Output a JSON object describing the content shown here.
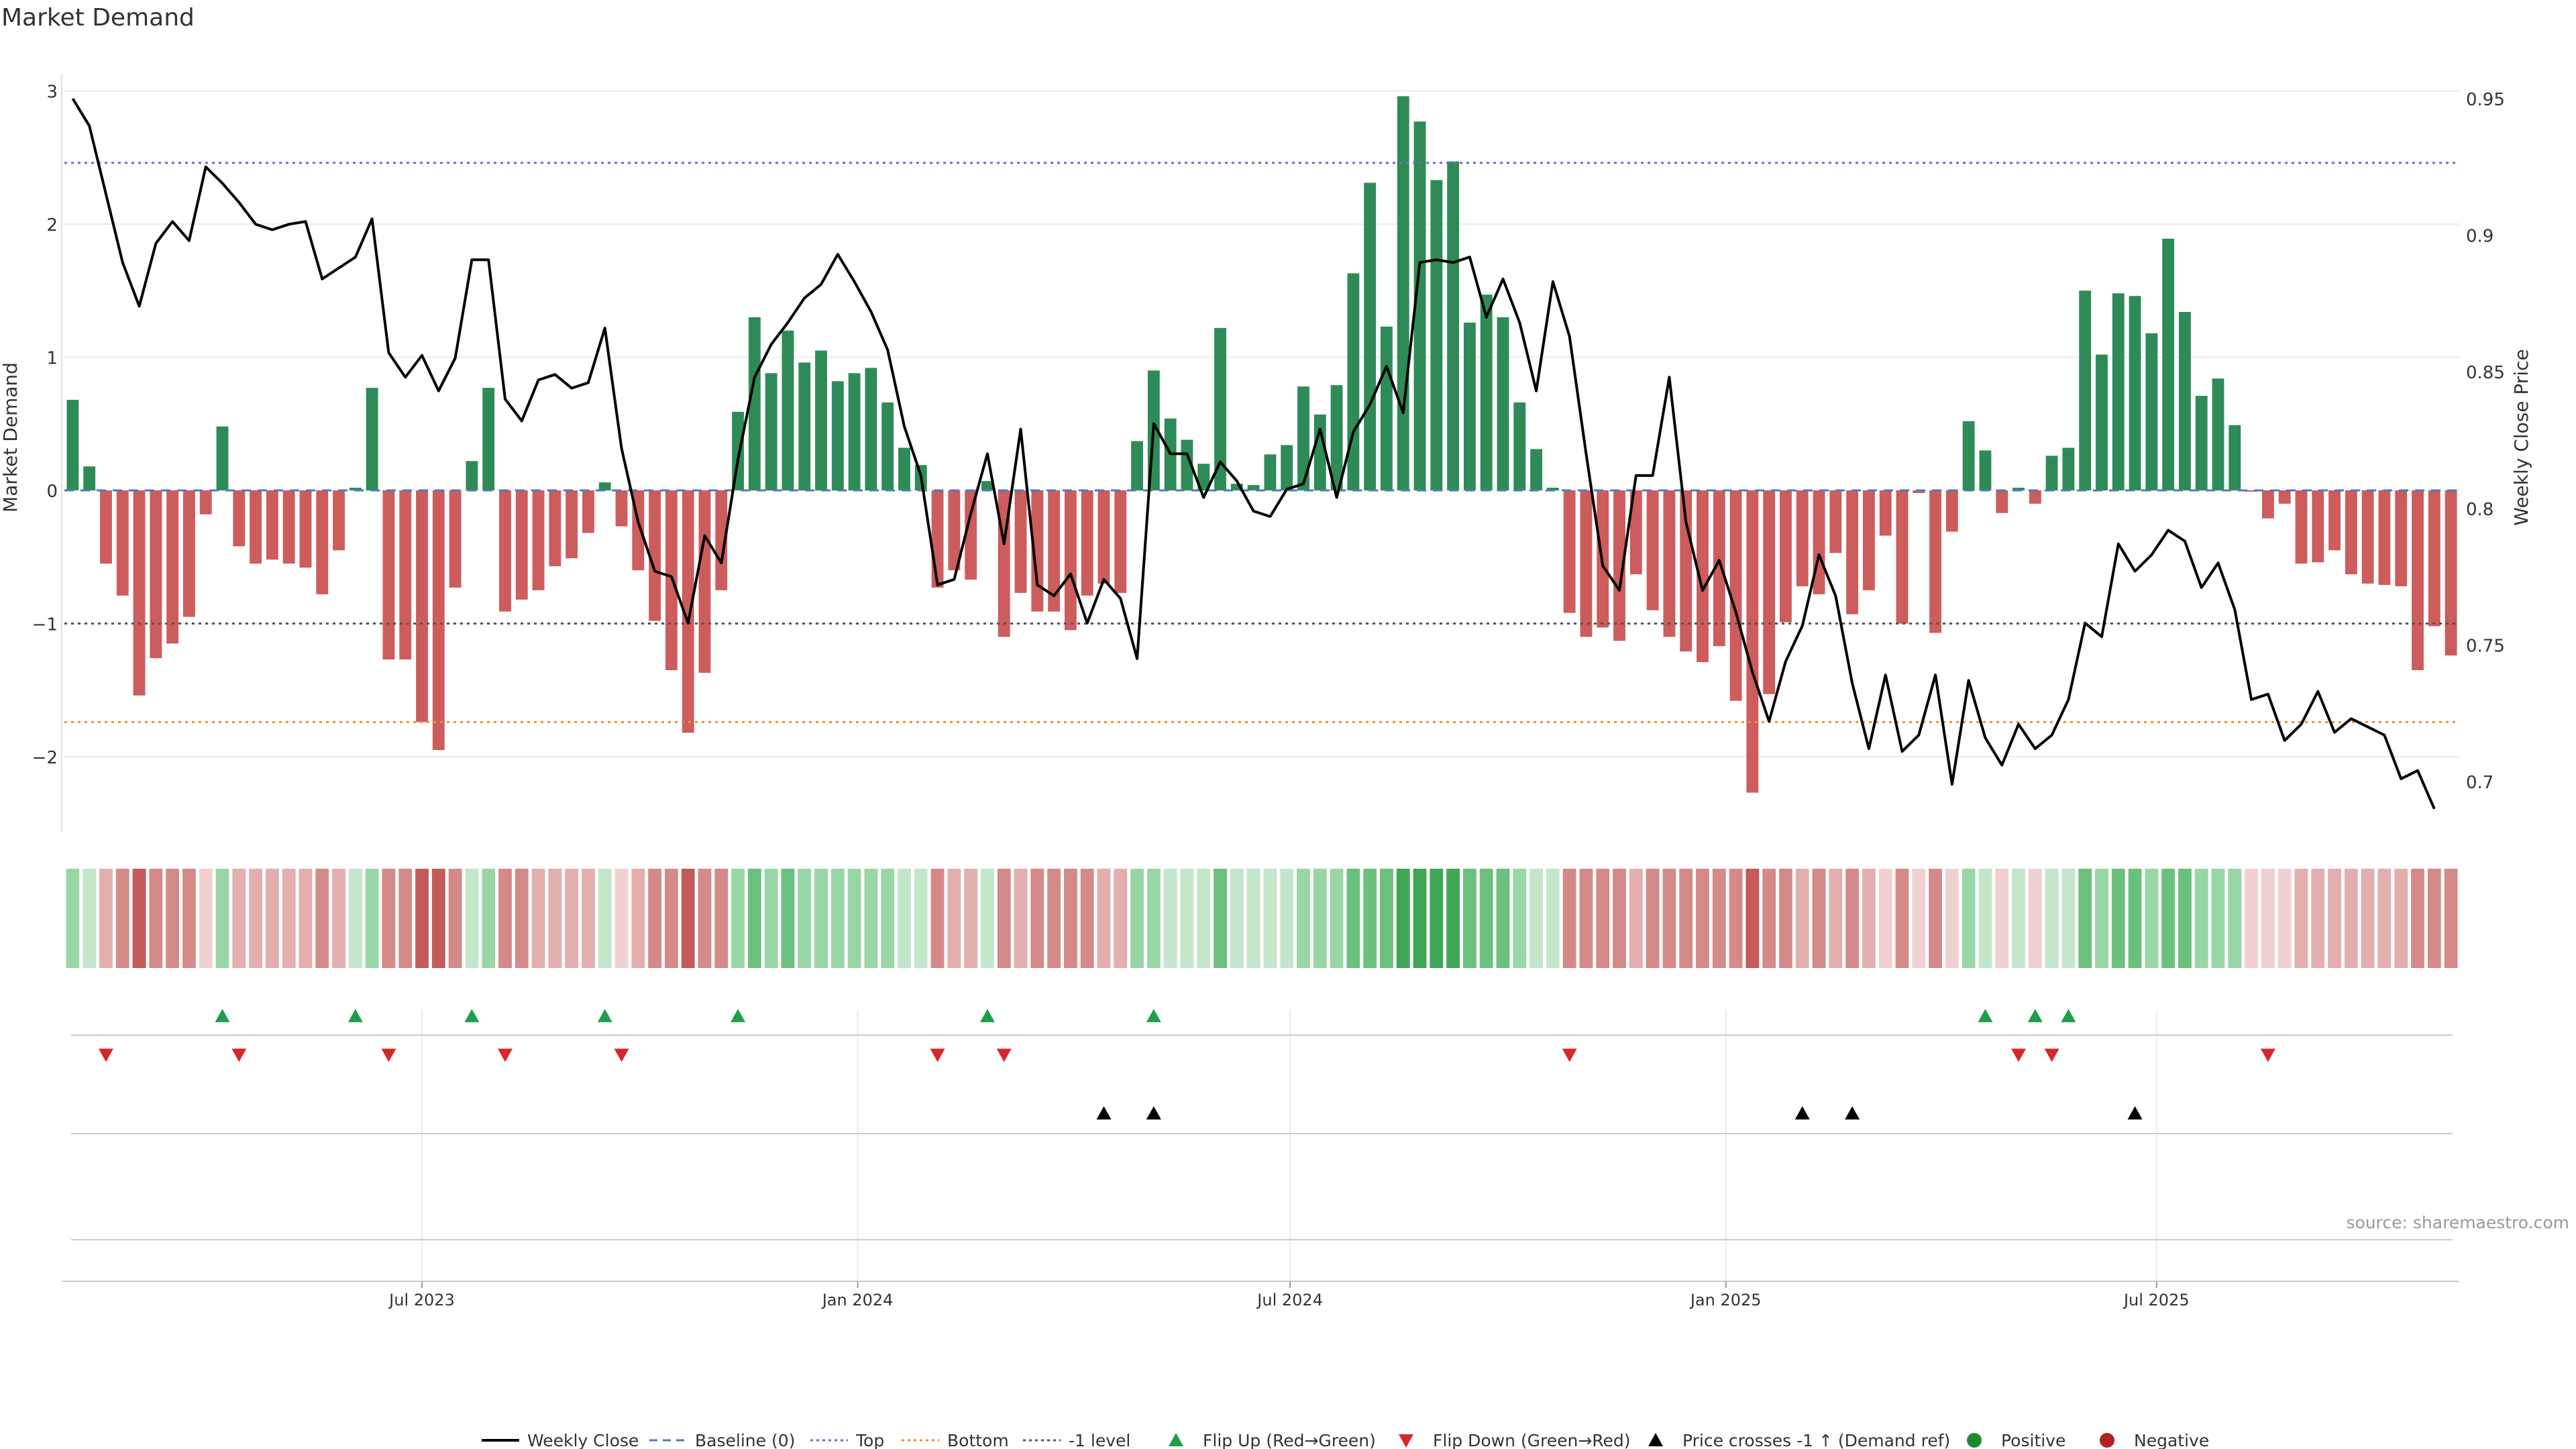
{
  "chart_data": {
    "type": "bar",
    "title": "Market Demand",
    "ylabel": "Market Demand",
    "ylabel_right": "Weekly Close Price",
    "ylim": [
      -2.55,
      3.05
    ],
    "ylim_right": [
      0.68,
      0.955
    ],
    "yticks": [
      -2,
      -1,
      0,
      1,
      2,
      3
    ],
    "yticks_right": [
      0.7,
      0.75,
      0.8,
      0.85,
      0.9,
      0.95
    ],
    "reference_lines": {
      "top": 2.46,
      "bottom": -1.74,
      "minus_one": -1.0,
      "baseline": 0
    },
    "x_ticks": [
      {
        "label": "Jul 2023",
        "week": 21.5
      },
      {
        "label": "Jan 2024",
        "week": 47.7
      },
      {
        "label": "Jul 2024",
        "week": 73.7
      },
      {
        "label": "Jan 2025",
        "week": 99.9
      },
      {
        "label": "Jul 2025",
        "week": 125.8
      }
    ],
    "n_weeks": 144,
    "demand": [
      0.68,
      0.18,
      -0.55,
      -0.79,
      -1.54,
      -1.26,
      -1.15,
      -0.95,
      -0.18,
      0.48,
      -0.42,
      -0.55,
      -0.52,
      -0.55,
      -0.58,
      -0.78,
      -0.45,
      0.02,
      0.77,
      -1.27,
      -1.27,
      -1.74,
      -1.95,
      -0.73,
      0.22,
      0.77,
      -0.91,
      -0.82,
      -0.75,
      -0.57,
      -0.51,
      -0.32,
      0.06,
      -0.27,
      -0.6,
      -0.98,
      -1.35,
      -1.82,
      -1.37,
      -0.75,
      0.59,
      1.3,
      0.88,
      1.2,
      0.96,
      1.05,
      0.82,
      0.88,
      0.92,
      0.66,
      0.32,
      0.19,
      -0.73,
      -0.6,
      -0.67,
      0.07,
      -1.1,
      -0.77,
      -0.91,
      -0.91,
      -1.05,
      -0.79,
      -0.7,
      -0.77,
      0.37,
      0.9,
      0.54,
      0.38,
      0.2,
      1.22,
      0.05,
      0.04,
      0.27,
      0.34,
      0.78,
      0.57,
      0.79,
      1.63,
      2.31,
      1.23,
      2.96,
      2.77,
      2.33,
      2.47,
      1.26,
      1.47,
      1.3,
      0.66,
      0.31,
      0.02,
      -0.92,
      -1.1,
      -1.03,
      -1.13,
      -0.63,
      -0.9,
      -1.1,
      -1.21,
      -1.29,
      -1.17,
      -1.58,
      -2.27,
      -1.53,
      -0.99,
      -0.72,
      -0.78,
      -0.47,
      -0.93,
      -0.75,
      -0.34,
      -1.0,
      -0.02,
      -1.07,
      -0.31,
      0.52,
      0.3,
      -0.17,
      0.02,
      -0.1,
      0.26,
      0.32,
      1.5,
      1.02,
      1.48,
      1.46,
      1.18,
      1.89,
      1.34,
      0.71,
      0.84,
      0.49,
      -0.01,
      -0.21,
      -0.1,
      -0.55,
      -0.54,
      -0.45,
      -0.63,
      -0.7,
      -0.71,
      -0.72,
      -1.35,
      -1.02,
      -1.24
    ],
    "weekly_close": [
      0.95,
      0.94,
      0.915,
      0.89,
      0.874,
      0.897,
      0.905,
      0.898,
      0.925,
      0.919,
      0.912,
      0.904,
      0.902,
      0.904,
      0.905,
      0.884,
      0.888,
      0.892,
      0.906,
      0.857,
      0.848,
      0.856,
      0.843,
      0.855,
      0.891,
      0.891,
      0.84,
      0.832,
      0.847,
      0.849,
      0.844,
      0.846,
      0.866,
      0.822,
      0.795,
      0.777,
      0.775,
      0.758,
      0.79,
      0.78,
      0.818,
      0.848,
      0.86,
      0.868,
      0.877,
      0.882,
      0.893,
      0.883,
      0.872,
      0.858,
      0.83,
      0.812,
      0.772,
      0.774,
      0.798,
      0.82,
      0.787,
      0.829,
      0.772,
      0.768,
      0.776,
      0.758,
      0.774,
      0.767,
      0.745,
      0.831,
      0.82,
      0.82,
      0.804,
      0.817,
      0.81,
      0.799,
      0.797,
      0.807,
      0.809,
      0.829,
      0.804,
      0.828,
      0.838,
      0.852,
      0.835,
      0.89,
      0.891,
      0.89,
      0.892,
      0.87,
      0.884,
      0.868,
      0.843,
      0.883,
      0.863,
      0.82,
      0.779,
      0.77,
      0.812,
      0.812,
      0.848,
      0.795,
      0.77,
      0.781,
      0.762,
      0.74,
      0.722,
      0.744,
      0.757,
      0.783,
      0.768,
      0.736,
      0.712,
      0.739,
      0.711,
      0.717,
      0.739,
      0.699,
      0.737,
      0.716,
      0.706,
      0.721,
      0.712,
      0.717,
      0.73,
      0.758,
      0.753,
      0.787,
      0.777,
      0.783,
      0.792,
      0.788,
      0.771,
      0.78,
      0.763,
      0.73,
      0.732,
      0.715,
      0.721,
      0.733,
      0.718,
      0.723,
      0.72,
      0.717,
      0.701,
      0.704,
      0.69
    ],
    "heatstrip": [
      2,
      1,
      -2,
      -3,
      -4,
      -3,
      -3,
      -3,
      -1,
      2,
      -2,
      -2,
      -2,
      -2,
      -2,
      -3,
      -2,
      1,
      2,
      -3,
      -3,
      -4,
      -4,
      -3,
      1,
      2,
      -3,
      -3,
      -2,
      -2,
      -2,
      -2,
      1,
      -1,
      -2,
      -3,
      -3,
      -4,
      -3,
      -3,
      2,
      3,
      2,
      3,
      2,
      2,
      2,
      2,
      2,
      2,
      1,
      1,
      -3,
      -2,
      -2,
      1,
      -3,
      -2,
      -3,
      -3,
      -3,
      -3,
      -2,
      -2,
      2,
      2,
      1,
      1,
      1,
      3,
      1,
      1,
      1,
      1,
      2,
      2,
      2,
      3,
      3,
      3,
      4,
      4,
      4,
      4,
      3,
      3,
      3,
      2,
      1,
      1,
      -3,
      -3,
      -3,
      -3,
      -2,
      -3,
      -3,
      -3,
      -3,
      -3,
      -3,
      -4,
      -3,
      -3,
      -2,
      -3,
      -2,
      -3,
      -2,
      -1,
      -3,
      -1,
      -3,
      -1,
      2,
      1,
      -1,
      1,
      -1,
      1,
      1,
      3,
      2,
      3,
      3,
      2,
      3,
      3,
      2,
      2,
      2,
      -1,
      -1,
      -1,
      -2,
      -2,
      -2,
      -2,
      -2,
      -2,
      -2,
      -3,
      -3,
      -3
    ],
    "flip_up_weeks": [
      9.5,
      17.5,
      24.5,
      32.5,
      40.5,
      55.5,
      65.5,
      115.5,
      118.5,
      120.5
    ],
    "flip_down_weeks": [
      2.5,
      10.5,
      19.5,
      26.5,
      33.5,
      52.5,
      56.5,
      90.5,
      117.5,
      119.5,
      132.5
    ],
    "price_cross_weeks": [
      62.5,
      65.5,
      104.5,
      107.5,
      124.5
    ],
    "legend": [
      {
        "label": "Weekly Close",
        "kind": "line-solid",
        "color": "#000000"
      },
      {
        "label": "Baseline (0)",
        "kind": "line-dash",
        "color": "#4a7db8"
      },
      {
        "label": "Top",
        "kind": "line-dot",
        "color": "#6a6ad0"
      },
      {
        "label": "Bottom",
        "kind": "line-dot",
        "color": "#e8913a"
      },
      {
        "label": "-1 level",
        "kind": "line-dot",
        "color": "#555555"
      },
      {
        "label": "Flip Up (Red→Green)",
        "kind": "tri-up",
        "color": "#1e9e4a"
      },
      {
        "label": "Flip Down (Green→Red)",
        "kind": "tri-down",
        "color": "#d62728"
      },
      {
        "label": "Price crosses -1 ↑ (Demand ref)",
        "kind": "tri-up",
        "color": "#000000"
      },
      {
        "label": "Positive",
        "kind": "dot",
        "color": "#1e8a2e"
      },
      {
        "label": "Negative",
        "kind": "dot",
        "color": "#b02020"
      }
    ]
  },
  "colors": {
    "positive_bar": "#2e8b57",
    "negative_bar": "#cd5c5c",
    "price_line": "#000000",
    "top_line": "#6a6ad0",
    "bottom_line": "#e8913a",
    "minus_one_line": "#555555",
    "baseline": "#4a7db8",
    "grid": "#ececec"
  },
  "source": "source: sharemaestro.com"
}
